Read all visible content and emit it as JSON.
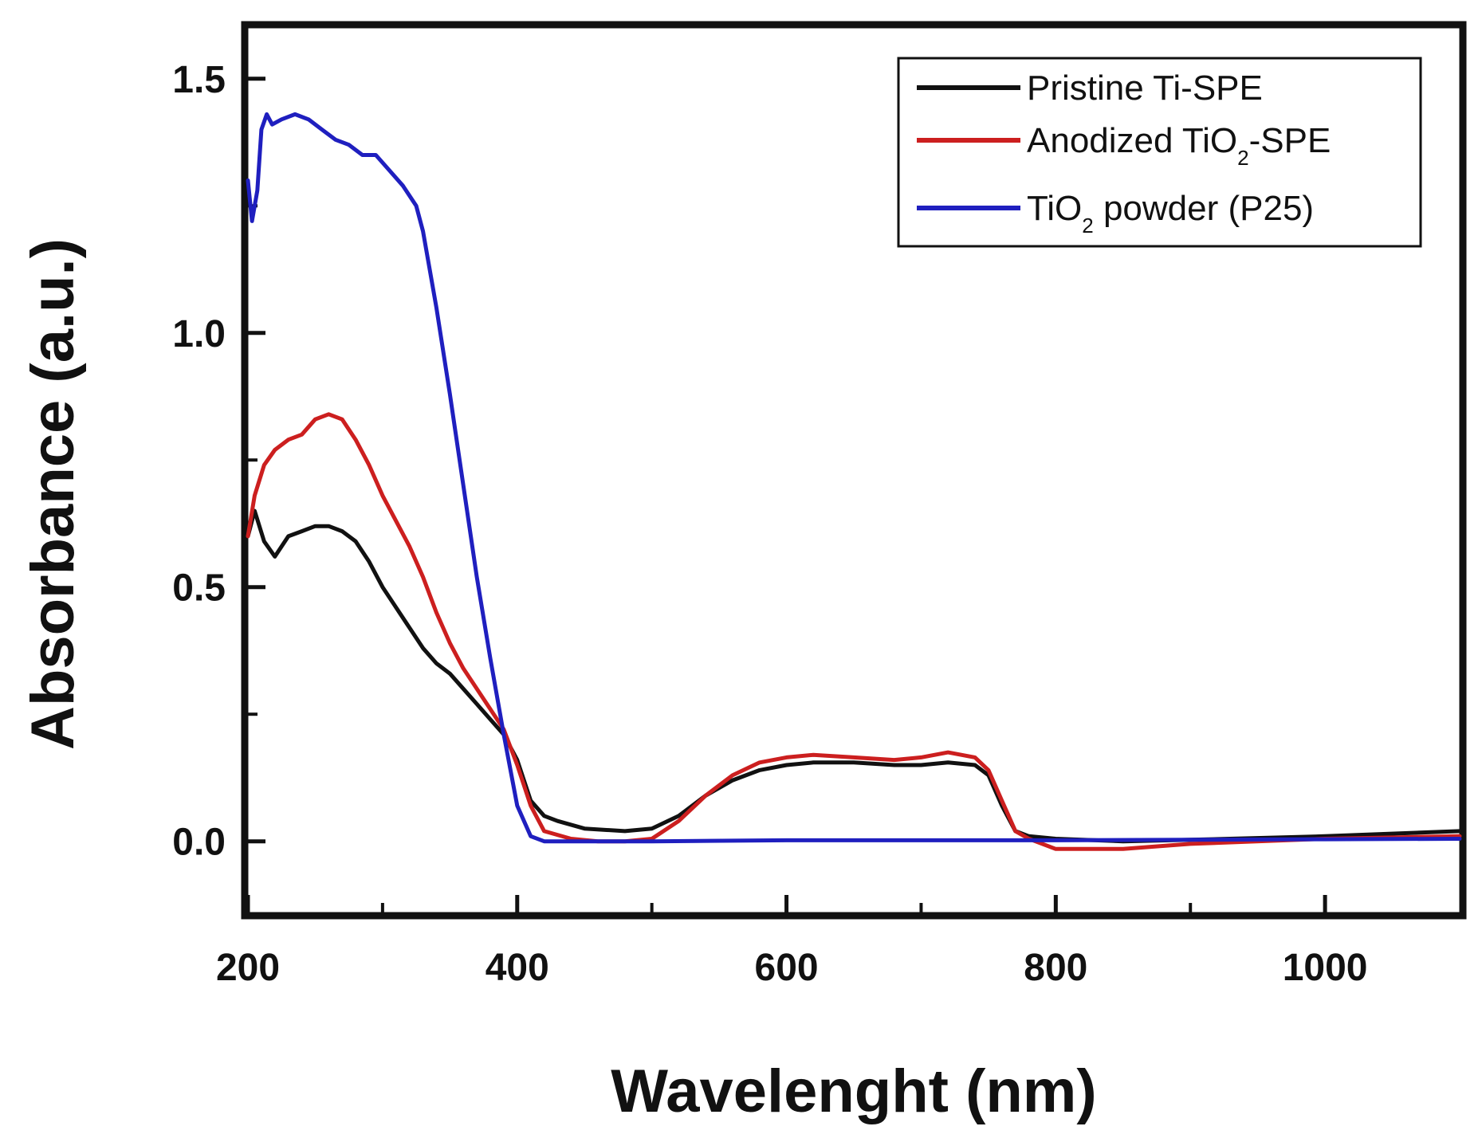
{
  "chart_data": {
    "type": "line",
    "title": "",
    "xlabel": "Wavelenght (nm)",
    "ylabel": "Absorbance (a.u.)",
    "xlim": [
      200,
      1100
    ],
    "ylim": [
      -0.14,
      1.6
    ],
    "x_ticks": [
      200,
      400,
      600,
      800,
      1000
    ],
    "x_tick_labels": [
      "200",
      "400",
      "600",
      "800",
      "1000"
    ],
    "y_ticks": [
      0.0,
      0.5,
      1.0,
      1.5
    ],
    "y_tick_labels": [
      "0.0",
      "0.5",
      "1.0",
      "1.5"
    ],
    "grid": false,
    "legend_position": "top-right",
    "series": [
      {
        "name": "Pristine Ti-SPE",
        "legend": {
          "base": "Pristine Ti-SPE",
          "sub": "",
          "tail": ""
        },
        "color": "#111111",
        "x": [
          200,
          205,
          212,
          220,
          230,
          240,
          250,
          260,
          270,
          280,
          290,
          300,
          310,
          320,
          330,
          340,
          350,
          360,
          370,
          380,
          390,
          400,
          410,
          420,
          430,
          450,
          480,
          500,
          520,
          540,
          560,
          580,
          600,
          620,
          650,
          680,
          700,
          720,
          740,
          750,
          760,
          770,
          780,
          800,
          850,
          900,
          1000,
          1100
        ],
        "values": [
          0.6,
          0.65,
          0.59,
          0.56,
          0.6,
          0.61,
          0.62,
          0.62,
          0.61,
          0.59,
          0.55,
          0.5,
          0.46,
          0.42,
          0.38,
          0.35,
          0.33,
          0.3,
          0.27,
          0.24,
          0.21,
          0.16,
          0.08,
          0.05,
          0.04,
          0.025,
          0.02,
          0.025,
          0.05,
          0.09,
          0.12,
          0.14,
          0.15,
          0.155,
          0.155,
          0.15,
          0.15,
          0.155,
          0.15,
          0.13,
          0.07,
          0.02,
          0.01,
          0.005,
          0.0,
          0.003,
          0.01,
          0.02
        ]
      },
      {
        "name": "Anodized TiO2-SPE",
        "legend": {
          "base": "Anodized TiO",
          "sub": "2",
          "tail": "-SPE"
        },
        "color": "#cc1f1f",
        "x": [
          200,
          205,
          212,
          220,
          230,
          240,
          250,
          260,
          270,
          280,
          290,
          300,
          310,
          320,
          330,
          340,
          350,
          360,
          370,
          380,
          390,
          400,
          410,
          420,
          440,
          460,
          480,
          500,
          520,
          540,
          560,
          580,
          600,
          620,
          650,
          680,
          700,
          720,
          740,
          750,
          760,
          770,
          780,
          800,
          850,
          900,
          1000,
          1100
        ],
        "values": [
          0.6,
          0.68,
          0.74,
          0.77,
          0.79,
          0.8,
          0.83,
          0.84,
          0.83,
          0.79,
          0.74,
          0.68,
          0.63,
          0.58,
          0.52,
          0.45,
          0.39,
          0.34,
          0.3,
          0.26,
          0.22,
          0.15,
          0.07,
          0.02,
          0.005,
          0.0,
          0.0,
          0.005,
          0.04,
          0.09,
          0.13,
          0.155,
          0.165,
          0.17,
          0.165,
          0.16,
          0.165,
          0.175,
          0.165,
          0.14,
          0.08,
          0.02,
          0.005,
          -0.015,
          -0.015,
          -0.005,
          0.005,
          0.01
        ]
      },
      {
        "name": "TiO2 powder (P25)",
        "legend": {
          "base": "TiO",
          "sub": "2",
          "tail": " powder (P25)"
        },
        "color": "#1f1fbf",
        "x": [
          200,
          203,
          207,
          210,
          214,
          218,
          225,
          235,
          245,
          255,
          265,
          275,
          285,
          295,
          305,
          315,
          325,
          330,
          340,
          350,
          360,
          370,
          380,
          390,
          400,
          410,
          420,
          430,
          500,
          600,
          700,
          800,
          900,
          1000,
          1100
        ],
        "values": [
          1.3,
          1.22,
          1.28,
          1.4,
          1.43,
          1.41,
          1.42,
          1.43,
          1.42,
          1.4,
          1.38,
          1.37,
          1.35,
          1.35,
          1.32,
          1.29,
          1.25,
          1.2,
          1.05,
          0.88,
          0.7,
          0.52,
          0.36,
          0.21,
          0.07,
          0.01,
          0.0,
          0.0,
          0.0,
          0.002,
          0.002,
          0.002,
          0.003,
          0.004,
          0.005
        ]
      }
    ]
  }
}
